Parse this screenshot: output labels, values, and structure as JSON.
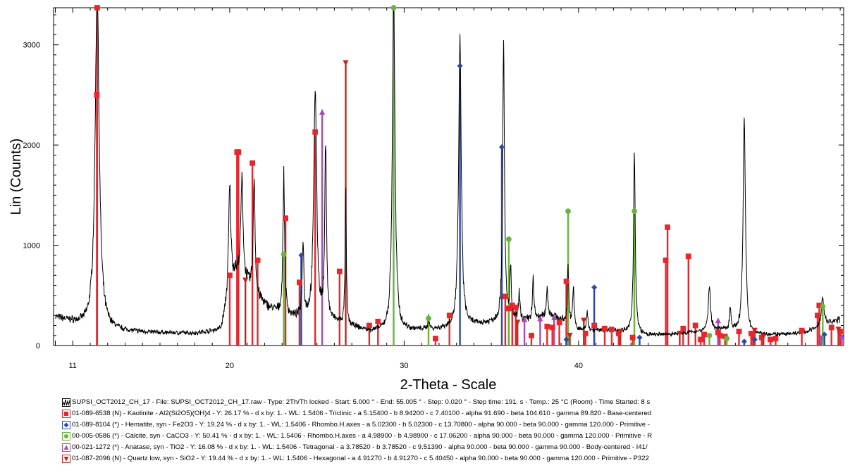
{
  "chart_data": {
    "type": "line",
    "xlabel": "2-Theta - Scale",
    "ylabel": "Lin (Counts)",
    "xlim": [
      9.9,
      55.2
    ],
    "ylim": [
      0,
      3370
    ],
    "x_ticks": [
      11,
      20,
      30,
      40
    ],
    "y_ticks": [
      0,
      1000,
      2000,
      3000
    ],
    "grid": false,
    "trace": {
      "name": "SUPSI_OCT2012_CH_17",
      "color": "#000000",
      "baseline": [
        [
          10.0,
          280
        ],
        [
          12.0,
          180
        ],
        [
          14.0,
          140
        ],
        [
          16.0,
          125
        ],
        [
          18.0,
          120
        ],
        [
          19.5,
          150
        ],
        [
          20.3,
          700
        ],
        [
          21.0,
          600
        ],
        [
          22.0,
          400
        ],
        [
          23.0,
          300
        ],
        [
          24.0,
          260
        ],
        [
          26.0,
          230
        ],
        [
          28.0,
          140
        ],
        [
          29.0,
          140
        ],
        [
          30.5,
          150
        ],
        [
          32.0,
          160
        ],
        [
          34.0,
          200
        ],
        [
          35.5,
          240
        ],
        [
          37.0,
          250
        ],
        [
          38.5,
          300
        ],
        [
          40.0,
          150
        ],
        [
          42.0,
          150
        ],
        [
          44.0,
          100
        ],
        [
          46.0,
          120
        ],
        [
          48.0,
          160
        ],
        [
          50.0,
          110
        ],
        [
          52.0,
          110
        ],
        [
          53.0,
          130
        ],
        [
          54.0,
          200
        ],
        [
          55.0,
          260
        ]
      ],
      "peaks": [
        [
          12.4,
          3370,
          0.14
        ],
        [
          20.0,
          1080,
          0.08
        ],
        [
          20.7,
          1000,
          0.08
        ],
        [
          21.4,
          1150,
          0.06
        ],
        [
          23.1,
          1400,
          0.06
        ],
        [
          24.2,
          760,
          0.06
        ],
        [
          24.9,
          2300,
          0.1
        ],
        [
          25.5,
          1750,
          0.06
        ],
        [
          26.65,
          1380,
          0.04
        ],
        [
          29.4,
          3370,
          0.09
        ],
        [
          31.4,
          110,
          0.05
        ],
        [
          33.2,
          2850,
          0.09
        ],
        [
          35.7,
          2850,
          0.06
        ],
        [
          36.1,
          500,
          0.05
        ],
        [
          36.6,
          260,
          0.05
        ],
        [
          37.4,
          380,
          0.05
        ],
        [
          38.2,
          300,
          0.05
        ],
        [
          39.4,
          560,
          0.05
        ],
        [
          39.7,
          400,
          0.05
        ],
        [
          40.5,
          190,
          0.05
        ],
        [
          43.2,
          1820,
          0.06
        ],
        [
          47.5,
          410,
          0.08
        ],
        [
          48.7,
          220,
          0.06
        ],
        [
          49.5,
          2150,
          0.08
        ],
        [
          54.0,
          300,
          0.08
        ]
      ]
    },
    "phases": [
      {
        "legend": "SUPSI_OCT2012_CH_17 - File: SUPSI_OCT2012_CH_17.raw - Type: 2Th/Th locked - Start: 5.000 ° - End: 55.005 ° - Step: 0.020 ° - Step time: 191. s - Temp.: 25 °C (Room) - Time Started: 8 s",
        "color": "#000000",
        "marker": "trace",
        "sticks": []
      },
      {
        "legend": "01-089-6538 (N) - Kaolinite - Al2(Si2O5)(OH)4 - Y: 26.17 % - d x by: 1. - WL: 1.5406 - Triclinic - a 5.15400 - b 8.94200 - c 7.40100 - alpha 91.690 - beta 104.610 - gamma 89.820 - Base-centered",
        "color": "#e8262c",
        "marker": "square",
        "sticks": [
          [
            12.4,
            3370
          ],
          [
            12.38,
            2500
          ],
          [
            20.0,
            700
          ],
          [
            20.42,
            1930
          ],
          [
            20.5,
            1930
          ],
          [
            21.3,
            1820
          ],
          [
            21.6,
            850
          ],
          [
            23.2,
            1270
          ],
          [
            24.0,
            630
          ],
          [
            24.9,
            2130
          ],
          [
            26.3,
            740
          ],
          [
            28.0,
            200
          ],
          [
            28.5,
            240
          ],
          [
            31.8,
            70
          ],
          [
            32.6,
            300
          ],
          [
            35.8,
            490
          ],
          [
            36.0,
            370
          ],
          [
            36.2,
            400
          ],
          [
            36.4,
            380
          ],
          [
            37.3,
            100
          ],
          [
            38.2,
            190
          ],
          [
            38.5,
            180
          ],
          [
            38.9,
            230
          ],
          [
            39.3,
            640
          ],
          [
            40.4,
            120
          ],
          [
            40.9,
            200
          ],
          [
            41.5,
            170
          ],
          [
            41.9,
            160
          ],
          [
            42.3,
            120
          ],
          [
            43.1,
            80
          ],
          [
            45.0,
            850
          ],
          [
            45.1,
            1180
          ],
          [
            46.0,
            170
          ],
          [
            46.3,
            890
          ],
          [
            46.7,
            200
          ],
          [
            47.0,
            60
          ],
          [
            47.2,
            110
          ],
          [
            48.0,
            130
          ],
          [
            48.1,
            100
          ],
          [
            48.4,
            90
          ],
          [
            49.2,
            140
          ],
          [
            49.9,
            120
          ],
          [
            50.0,
            90
          ],
          [
            50.5,
            80
          ],
          [
            51.0,
            60
          ],
          [
            51.3,
            70
          ],
          [
            52.8,
            150
          ],
          [
            53.7,
            300
          ],
          [
            53.8,
            400
          ],
          [
            54.5,
            180
          ],
          [
            55.0,
            140
          ]
        ]
      },
      {
        "legend": "01-089-8104 (*) - Hematite, syn - Fe2O3 - Y: 19.24 % - d x by: 1. - WL: 1.5406 - Rhombo.H.axes - a 5.02300 - b 5.02300 - c 13.70800 - alpha 90.000 - beta 90.000 - gamma 120.000 - Primitive -",
        "color": "#2b4aa6",
        "marker": "diamond",
        "sticks": [
          [
            24.1,
            900
          ],
          [
            33.2,
            2790
          ],
          [
            35.6,
            1980
          ],
          [
            39.3,
            60
          ],
          [
            40.9,
            580
          ],
          [
            43.5,
            80
          ],
          [
            49.5,
            40
          ],
          [
            50.1,
            60
          ],
          [
            54.1,
            110
          ]
        ]
      },
      {
        "legend": "00-005-0586 (*) - Calcite, syn - CaCO3 - Y: 50.41 % - d x by: 1. - WL: 1.5406 - Rhombo.H.axes - a 4.98900 - b 4.98900 - c 17.06200 - alpha 90.000 - beta 90.000 - gamma 120.000 - Primitive - R",
        "color": "#6ab43e",
        "marker": "circle",
        "sticks": [
          [
            23.1,
            910
          ],
          [
            29.4,
            3370
          ],
          [
            31.4,
            270
          ],
          [
            36.0,
            1060
          ],
          [
            39.4,
            1340
          ],
          [
            43.2,
            1340
          ],
          [
            47.5,
            100
          ],
          [
            48.5,
            70
          ],
          [
            54.0,
            390
          ]
        ]
      },
      {
        "legend": "00-021-1272 (*) - Anatase, syn - TiO2 - Y: 16.08 % - d x by: 1. - WL: 1.5406 - Tetragonal - a 3.78520 - b 3.78520 - c 9.51390 - alpha 90.000 - beta 90.000 - gamma 90.000 - Body-centered - I41/",
        "color": "#a64cb4",
        "marker": "triangle-up",
        "sticks": [
          [
            25.3,
            2330
          ],
          [
            36.9,
            260
          ],
          [
            37.8,
            270
          ],
          [
            38.6,
            280
          ],
          [
            48.0,
            250
          ],
          [
            53.9,
            80
          ],
          [
            55.1,
            90
          ]
        ]
      },
      {
        "legend": "01-087-2096 (N) - Quartz low, syn - SiO2 - Y: 19.44 % - d x by: 1. - WL: 1.5406 - Hexagonal - a 4.91270 - b 4.91270 - c 5.40450 - alpha 90.000 - beta 90.000 - gamma 120.000 - Primitive - P322",
        "color": "#c2261e",
        "marker": "triangle-down",
        "sticks": [
          [
            20.9,
            650
          ],
          [
            26.65,
            2820
          ],
          [
            36.5,
            230
          ],
          [
            39.5,
            100
          ],
          [
            40.3,
            250
          ],
          [
            42.4,
            140
          ],
          [
            45.8,
            120
          ],
          [
            50.1,
            150
          ],
          [
            50.6,
            90
          ],
          [
            54.9,
            160
          ]
        ]
      }
    ]
  }
}
